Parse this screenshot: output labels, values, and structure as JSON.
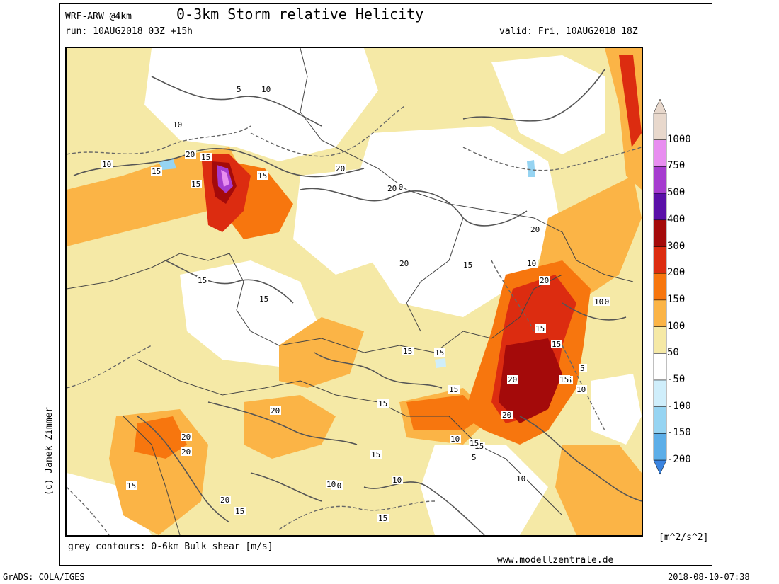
{
  "header": {
    "model": "WRF-ARW @4km",
    "title": "0-3km Storm relative Helicity",
    "run": "run: 10AUG2018 03Z +15h",
    "valid": "valid: Fri, 10AUG2018 18Z"
  },
  "legend": {
    "unit": "[m^2/s^2]",
    "levels": [
      {
        "label": "1000",
        "color": "#e8d8cc"
      },
      {
        "label": "750",
        "color": "#e88ef0"
      },
      {
        "label": "500",
        "color": "#a63ccf"
      },
      {
        "label": "400",
        "color": "#5a0fa8"
      },
      {
        "label": "300",
        "color": "#a40a0a"
      },
      {
        "label": "200",
        "color": "#dc2c10"
      },
      {
        "label": "150",
        "color": "#f7760e"
      },
      {
        "label": "100",
        "color": "#fbb446"
      },
      {
        "label": "50",
        "color": "#f5e9a6"
      },
      {
        "label": "-50",
        "color": "#ffffff"
      },
      {
        "label": "-100",
        "color": "#cfeefb"
      },
      {
        "label": "-150",
        "color": "#96d4f2"
      },
      {
        "label": "-200",
        "color": "#5caee8"
      }
    ],
    "bottom_color": "#3a84e0"
  },
  "contour_labels": [
    "10",
    "15",
    "5",
    "10",
    "15",
    "10",
    "20",
    "15",
    "15",
    "20",
    "20",
    "20",
    "20",
    "15",
    "10",
    "15",
    "15",
    "20",
    "20",
    "15",
    "15",
    "15",
    "15",
    "15",
    "10",
    "10",
    "5",
    "15",
    "20",
    "15",
    "20",
    "15",
    "15",
    "20",
    "20",
    "20",
    "15",
    "15",
    "15",
    "10",
    "5",
    "10",
    "10",
    "10",
    "5",
    "10",
    "20",
    "10",
    "15",
    "15"
  ],
  "footer": {
    "contour_note": "grey contours: 0-6km Bulk shear [m/s]",
    "website": "www.modellzentrale.de",
    "grads": "GrADS: COLA/IGES",
    "timestamp": "2018-08-10-07:38",
    "copyright": "(c) Janek Zimmer"
  },
  "colors": {
    "contour": "#555555",
    "border": "#444444"
  }
}
